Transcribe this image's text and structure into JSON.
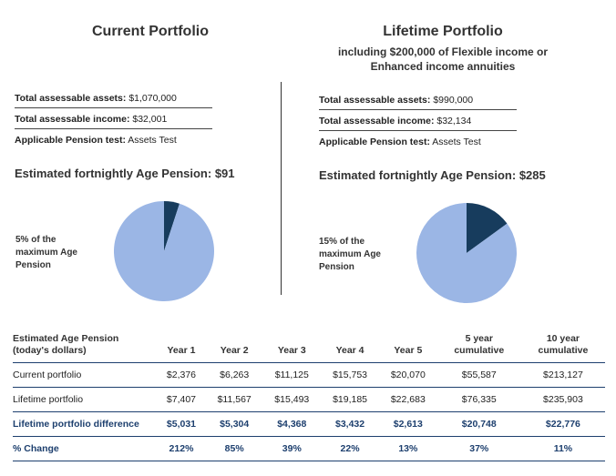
{
  "colors": {
    "pie_main": "#9bb6e5",
    "pie_slice": "#173c5d",
    "accent_navy": "#1d3f6e"
  },
  "left": {
    "title": "Current Portfolio",
    "assets_label": "Total assessable assets:",
    "assets_value": "$1,070,000",
    "income_label": "Total assessable income:",
    "income_value": "$32,001",
    "test_label": "Applicable Pension test:",
    "test_value": "Assets Test",
    "pension_text": "Estimated fortnightly Age Pension: $91",
    "pie_label_line1": "5% of the",
    "pie_label_line2": "maximum Age",
    "pie_label_line3": "Pension"
  },
  "right": {
    "title": "Lifetime Portfolio",
    "subtitle_line1": "including $200,000 of Flexible income or",
    "subtitle_line2": "Enhanced income annuities",
    "assets_label": "Total assessable assets:",
    "assets_value": "$990,000",
    "income_label": "Total assessable income:",
    "income_value": "$32,134",
    "test_label": "Applicable Pension test:",
    "test_value": "Assets Test",
    "pension_text": "Estimated fortnightly Age Pension: $285",
    "pie_label_line1": "15% of the",
    "pie_label_line2": "maximum Age",
    "pie_label_line3": "Pension"
  },
  "table": {
    "header_line1": "Estimated Age Pension",
    "header_line2": "(today's dollars)",
    "columns": [
      {
        "line1": "Year 1",
        "line2": ""
      },
      {
        "line1": "Year 2",
        "line2": ""
      },
      {
        "line1": "Year 3",
        "line2": ""
      },
      {
        "line1": "Year 4",
        "line2": ""
      },
      {
        "line1": "Year 5",
        "line2": ""
      },
      {
        "line1": "5 year",
        "line2": "cumulative"
      },
      {
        "line1": "10 year",
        "line2": "cumulative"
      }
    ],
    "rows": [
      {
        "label": "Current portfolio",
        "values": [
          "$2,376",
          "$6,263",
          "$11,125",
          "$15,753",
          "$20,070",
          "$55,587",
          "$213,127"
        ]
      },
      {
        "label": "Lifetime portfolio",
        "values": [
          "$7,407",
          "$11,567",
          "$15,493",
          "$19,185",
          "$22,683",
          "$76,335",
          "$235,903"
        ]
      },
      {
        "label": "Lifetime portfolio difference",
        "values": [
          "$5,031",
          "$5,304",
          "$4,368",
          "$3,432",
          "$2,613",
          "$20,748",
          "$22,776"
        ]
      },
      {
        "label": "% Change",
        "values": [
          "212%",
          "85%",
          "39%",
          "22%",
          "13%",
          "37%",
          "11%"
        ]
      }
    ]
  },
  "chart_data": [
    {
      "type": "pie",
      "title": "Current Portfolio",
      "slices": [
        {
          "label": "5% of the maximum Age Pension",
          "value": 5
        },
        {
          "label": "",
          "value": 95
        }
      ]
    },
    {
      "type": "pie",
      "title": "Lifetime Portfolio",
      "slices": [
        {
          "label": "15% of the maximum Age Pension",
          "value": 15
        },
        {
          "label": "",
          "value": 85
        }
      ]
    }
  ]
}
